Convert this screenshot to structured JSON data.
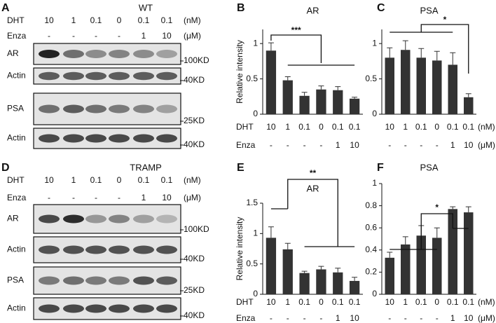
{
  "blots": [
    {
      "label": "A",
      "title": "WT",
      "dht_label": "DHT",
      "dht": [
        "10",
        "1",
        "0.1",
        "0",
        "0.1",
        "0.1"
      ],
      "dht_unit": "(nM)",
      "enza_label": "Enza",
      "enza": [
        "-",
        "-",
        "-",
        "-",
        "1",
        "10"
      ],
      "enza_unit": "(μM)",
      "rows": [
        {
          "protein": "AR",
          "size": "100KD"
        },
        {
          "protein": "Actin",
          "size": "40KD"
        },
        {
          "protein": "PSA",
          "size": "25KD"
        },
        {
          "protein": "Actin",
          "size": "40KD"
        }
      ]
    },
    {
      "label": "D",
      "title": "TRAMP",
      "dht_label": "DHT",
      "dht": [
        "10",
        "1",
        "0.1",
        "0",
        "0.1",
        "0.1"
      ],
      "dht_unit": "(nM)",
      "enza_label": "Enza",
      "enza": [
        "-",
        "-",
        "-",
        "-",
        "1",
        "10"
      ],
      "enza_unit": "(μM)",
      "rows": [
        {
          "protein": "AR",
          "size": "100KD"
        },
        {
          "protein": "Actin",
          "size": "40KD"
        },
        {
          "protein": "PSA",
          "size": "25KD"
        },
        {
          "protein": "Actin",
          "size": "40KD"
        }
      ]
    }
  ],
  "chart_data": [
    {
      "type": "bar",
      "label": "B",
      "title": "AR",
      "ylabel": "Relative intensity",
      "row_labels": [
        "DHT",
        "Enza"
      ],
      "categories": [
        "10",
        "1",
        "0.1",
        "0",
        "0.1",
        "0.1"
      ],
      "categories2": [
        "-",
        "-",
        "-",
        "-",
        "1",
        "10"
      ],
      "values": [
        0.9,
        0.48,
        0.26,
        0.35,
        0.34,
        0.22
      ],
      "errors": [
        0.11,
        0.05,
        0.05,
        0.05,
        0.05,
        0.02
      ],
      "color": "#333333",
      "ylim": [
        0,
        1.2
      ],
      "yticks": [
        0,
        0.5,
        1
      ],
      "annotations": [
        "***"
      ]
    },
    {
      "type": "bar",
      "label": "C",
      "title": "PSA",
      "units": [
        "(nM)",
        "(μM)"
      ],
      "categories": [
        "10",
        "1",
        "0.1",
        "0",
        "0.1",
        "0.1"
      ],
      "categories2": [
        "-",
        "-",
        "-",
        "-",
        "1",
        "10"
      ],
      "values": [
        0.8,
        0.91,
        0.8,
        0.76,
        0.7,
        0.24
      ],
      "errors": [
        0.14,
        0.13,
        0.13,
        0.13,
        0.17,
        0.05
      ],
      "color": "#333333",
      "ylim": [
        0,
        1.2
      ],
      "yticks": [
        0,
        0.5,
        1
      ],
      "annotations": [
        "*"
      ]
    },
    {
      "type": "bar",
      "label": "E",
      "title": "AR",
      "ylabel": "Relative intensity",
      "row_labels": [
        "DHT",
        "Enza"
      ],
      "categories": [
        "10",
        "1",
        "0.1",
        "0",
        "0.1",
        "0.1"
      ],
      "categories2": [
        "-",
        "-",
        "-",
        "-",
        "1",
        "10"
      ],
      "values": [
        0.93,
        0.74,
        0.35,
        0.41,
        0.36,
        0.22
      ],
      "errors": [
        0.18,
        0.1,
        0.03,
        0.05,
        0.07,
        0.06
      ],
      "color": "#333333",
      "ylim": [
        0,
        1.5
      ],
      "yticks": [
        0,
        0.5,
        1,
        1.5
      ],
      "annotations": [
        "**"
      ]
    },
    {
      "type": "bar",
      "label": "F",
      "title": "PSA",
      "units": [
        "(nM)",
        "(μM)"
      ],
      "categories": [
        "10",
        "1",
        "0.1",
        "0",
        "0.1",
        "0.1"
      ],
      "categories2": [
        "-",
        "-",
        "-",
        "-",
        "1",
        "10"
      ],
      "values": [
        0.33,
        0.45,
        0.53,
        0.51,
        0.77,
        0.74
      ],
      "errors": [
        0.05,
        0.07,
        0.09,
        0.09,
        0.02,
        0.05
      ],
      "color": "#333333",
      "ylim": [
        0,
        1
      ],
      "yticks": [
        0,
        0.2,
        0.4,
        0.6,
        0.8,
        1
      ],
      "annotations": [
        "*"
      ]
    }
  ]
}
